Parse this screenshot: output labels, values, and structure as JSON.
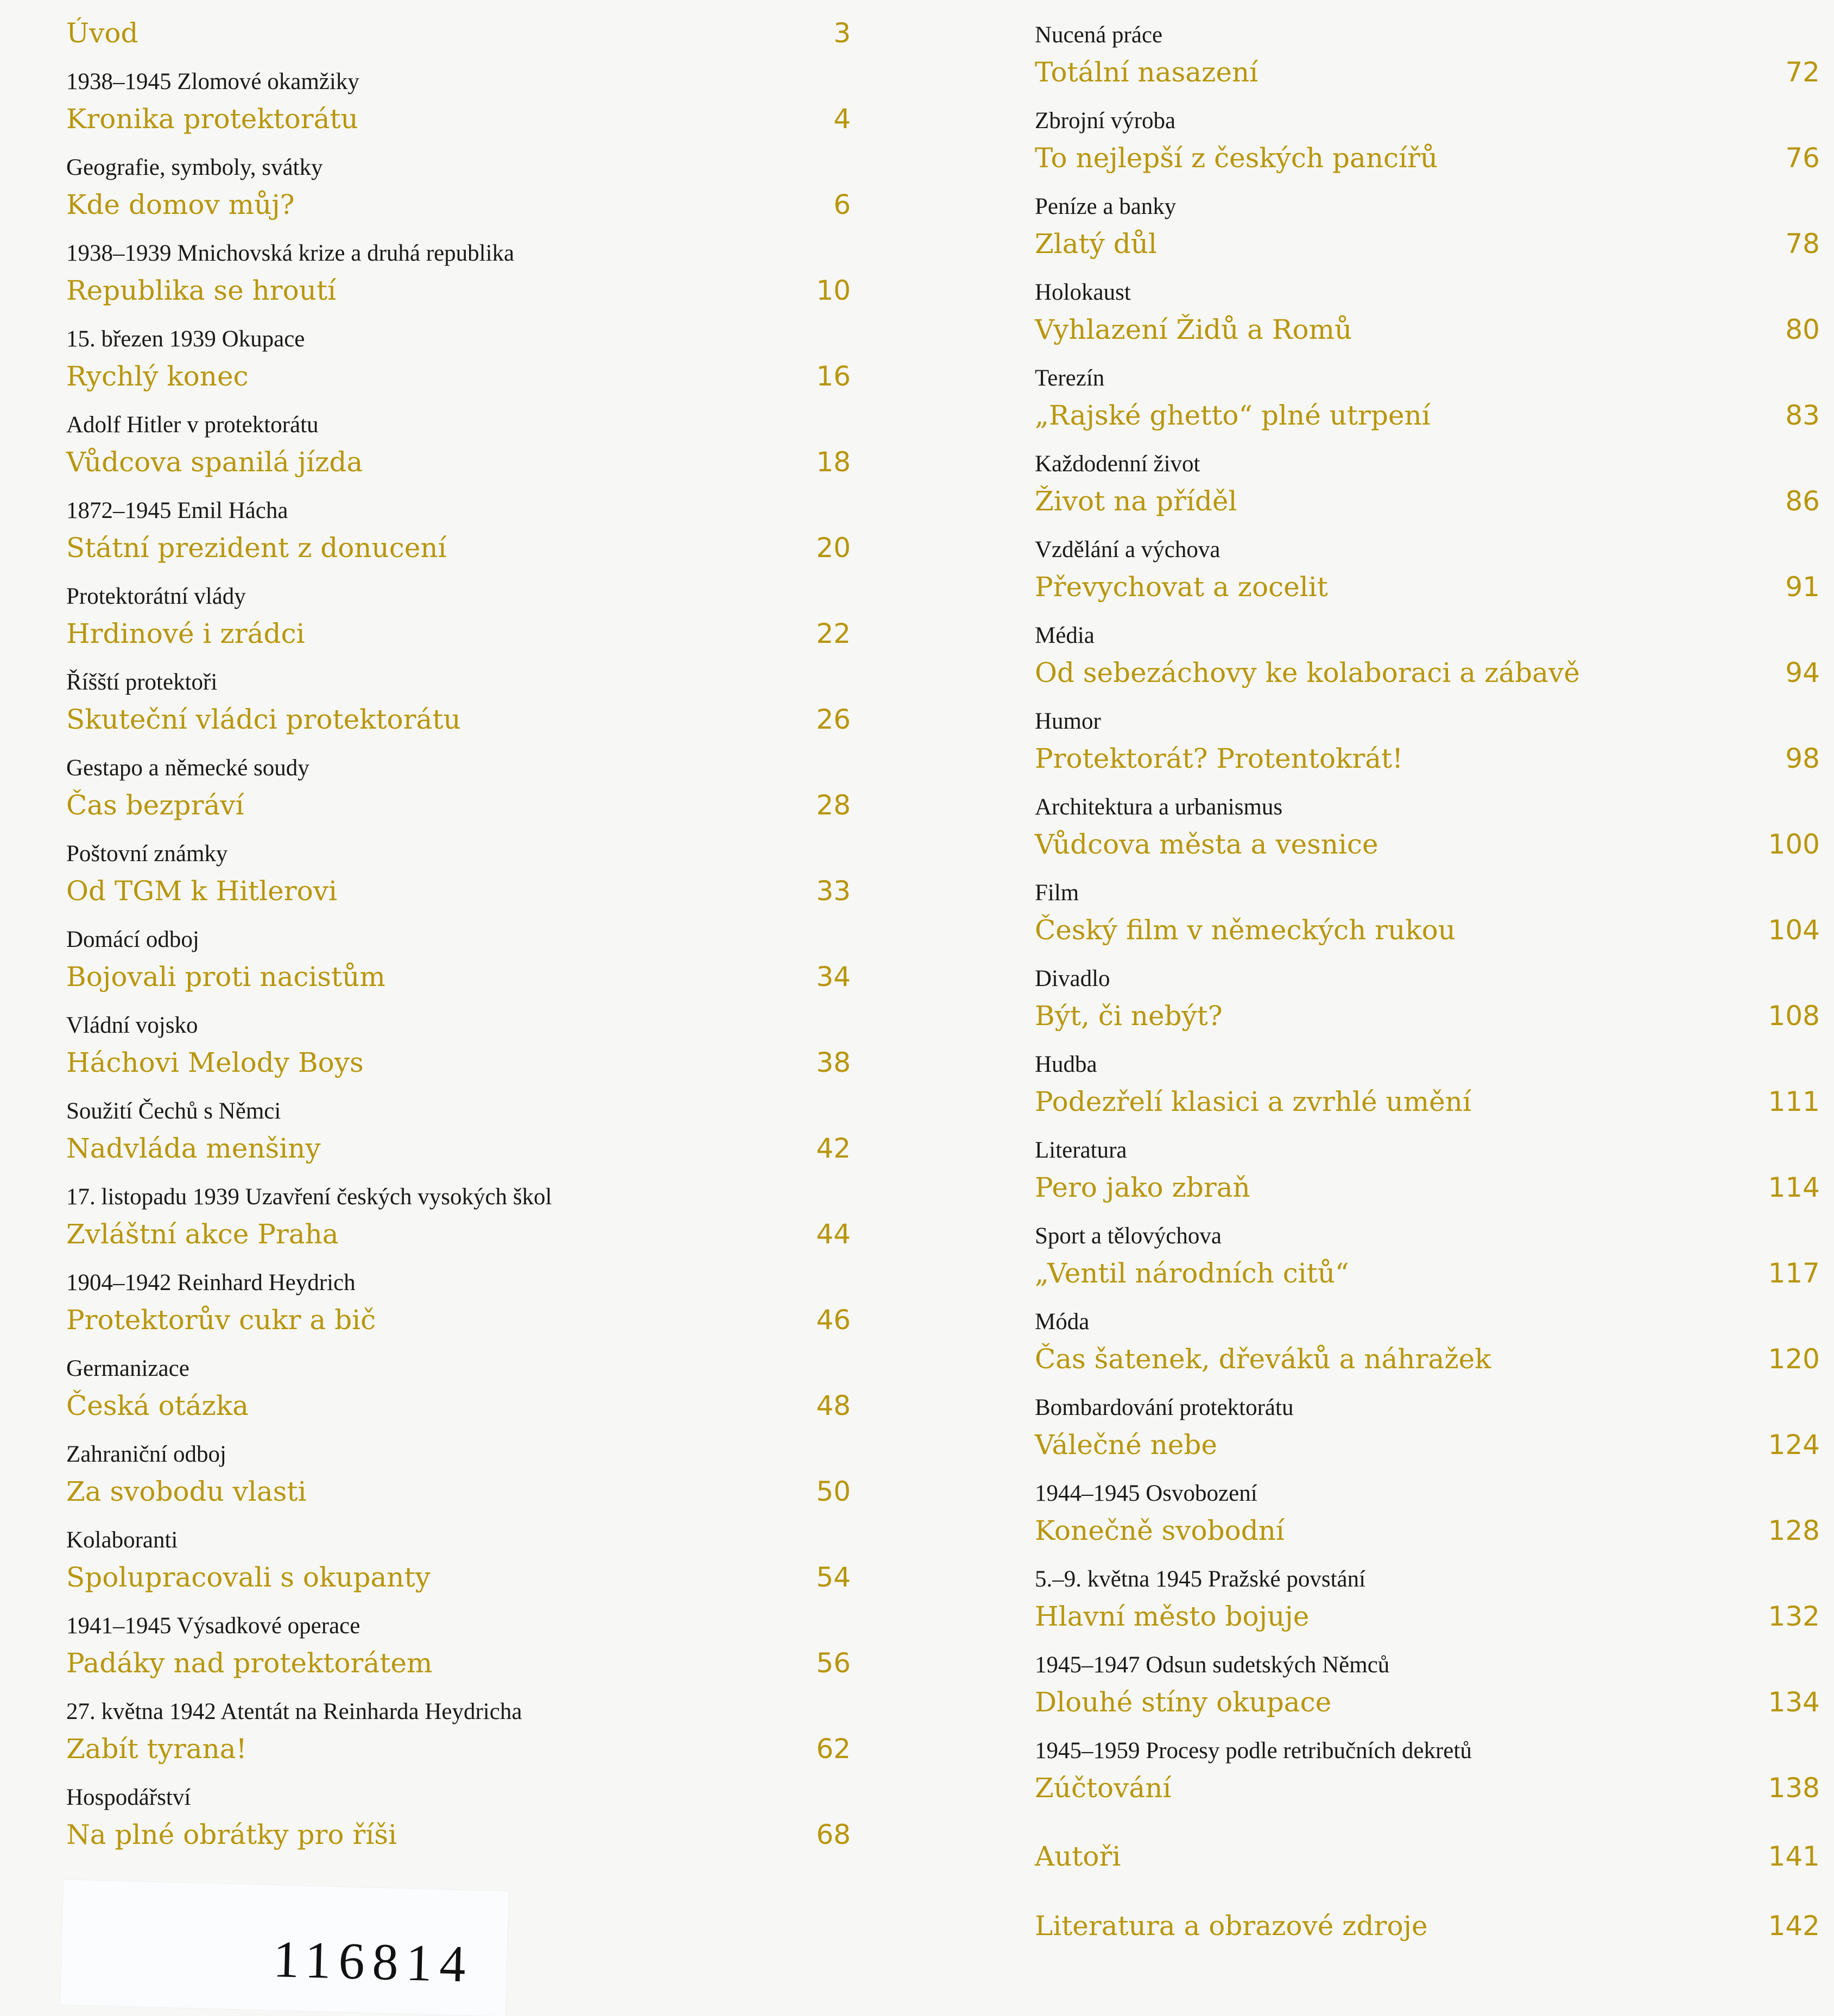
{
  "accent_color": "#b8960c",
  "left_column": [
    {
      "subtitle": "",
      "title": "Úvod",
      "page": "3"
    },
    {
      "subtitle": "1938–1945 Zlomové okamžiky",
      "title": "Kronika protektorátu",
      "page": "4"
    },
    {
      "subtitle": "Geografie, symboly, svátky",
      "title": "Kde domov můj?",
      "page": "6"
    },
    {
      "subtitle": "1938–1939 Mnichovská krize a druhá republika",
      "title": "Republika se hroutí",
      "page": "10"
    },
    {
      "subtitle": "15. březen 1939 Okupace",
      "title": "Rychlý konec",
      "page": "16"
    },
    {
      "subtitle": "Adolf Hitler v protektorátu",
      "title": "Vůdcova spanilá jízda",
      "page": "18"
    },
    {
      "subtitle": "1872–1945 Emil Hácha",
      "title": "Státní prezident z donucení",
      "page": "20"
    },
    {
      "subtitle": "Protektorátní vlády",
      "title": "Hrdinové i zrádci",
      "page": "22"
    },
    {
      "subtitle": "Říšští protektoři",
      "title": "Skuteční vládci protektorátu",
      "page": "26"
    },
    {
      "subtitle": "Gestapo a německé soudy",
      "title": "Čas bezpráví",
      "page": "28"
    },
    {
      "subtitle": "Poštovní známky",
      "title": "Od TGM k Hitlerovi",
      "page": "33"
    },
    {
      "subtitle": "Domácí odboj",
      "title": "Bojovali proti nacistům",
      "page": "34"
    },
    {
      "subtitle": "Vládní vojsko",
      "title": "Háchovi Melody Boys",
      "page": "38"
    },
    {
      "subtitle": "Soužití Čechů s Němci",
      "title": "Nadvláda menšiny",
      "page": "42"
    },
    {
      "subtitle": "17. listopadu 1939 Uzavření českých vysokých škol",
      "title": "Zvláštní akce Praha",
      "page": "44"
    },
    {
      "subtitle": "1904–1942 Reinhard Heydrich",
      "title": "Protektorův cukr a bič",
      "page": "46"
    },
    {
      "subtitle": "Germanizace",
      "title": "Česká otázka",
      "page": "48"
    },
    {
      "subtitle": "Zahraniční odboj",
      "title": "Za svobodu vlasti",
      "page": "50"
    },
    {
      "subtitle": "Kolaboranti",
      "title": "Spolupracovali s okupanty",
      "page": "54"
    },
    {
      "subtitle": "1941–1945 Výsadkové operace",
      "title": "Padáky nad protektorátem",
      "page": "56"
    },
    {
      "subtitle": "27. května 1942 Atentát na Reinharda Heydricha",
      "title": "Zabít tyrana!",
      "page": "62"
    },
    {
      "subtitle": "Hospodářství",
      "title": "Na plné obrátky pro říši",
      "page": "68"
    }
  ],
  "right_column": [
    {
      "subtitle": "Nucená práce",
      "title": "Totální nasazení",
      "page": "72"
    },
    {
      "subtitle": "Zbrojní výroba",
      "title": "To nejlepší z českých pancířů",
      "page": "76"
    },
    {
      "subtitle": "Peníze a banky",
      "title": "Zlatý důl",
      "page": "78"
    },
    {
      "subtitle": "Holokaust",
      "title": "Vyhlazení Židů a Romů",
      "page": "80"
    },
    {
      "subtitle": "Terezín",
      "title": "„Rajské ghetto“ plné utrpení",
      "page": "83"
    },
    {
      "subtitle": "Každodenní život",
      "title": "Život na příděl",
      "page": "86"
    },
    {
      "subtitle": "Vzdělání a výchova",
      "title": "Převychovat a zocelit",
      "page": "91"
    },
    {
      "subtitle": "Média",
      "title": "Od sebezáchovy ke kolaboraci a zábavě",
      "page": "94"
    },
    {
      "subtitle": "Humor",
      "title": "Protektorát? Protentokrát!",
      "page": "98"
    },
    {
      "subtitle": "Architektura a urbanismus",
      "title": "Vůdcova města a vesnice",
      "page": "100"
    },
    {
      "subtitle": "Film",
      "title": "Český film v německých rukou",
      "page": "104"
    },
    {
      "subtitle": "Divadlo",
      "title": "Být, či nebýt?",
      "page": "108"
    },
    {
      "subtitle": "Hudba",
      "title": "Podezřelí klasici a zvrhlé umění",
      "page": "111"
    },
    {
      "subtitle": "Literatura",
      "title": "Pero jako zbraň",
      "page": "114"
    },
    {
      "subtitle": "Sport a tělovýchova",
      "title": "„Ventil národních citů“",
      "page": "117"
    },
    {
      "subtitle": "Móda",
      "title": "Čas šatenek, dřeváků a náhražek",
      "page": "120"
    },
    {
      "subtitle": "Bombardování protektorátu",
      "title": "Válečné nebe",
      "page": "124"
    },
    {
      "subtitle": "1944–1945 Osvobození",
      "title": "Konečně svobodní",
      "page": "128"
    },
    {
      "subtitle": "5.–9. května 1945 Pražské povstání",
      "title": "Hlavní město bojuje",
      "page": "132"
    },
    {
      "subtitle": "1945–1947 Odsun sudetských Němců",
      "title": "Dlouhé stíny okupace",
      "page": "134"
    },
    {
      "subtitle": "1945–1959 Procesy podle retribučních dekretů",
      "title": "Zúčtování",
      "page": "138"
    }
  ],
  "back_matter": [
    {
      "title": "Autoři",
      "page": "141"
    },
    {
      "title": "Literatura a obrazové zdroje",
      "page": "142"
    }
  ],
  "stamp_number": "116814"
}
